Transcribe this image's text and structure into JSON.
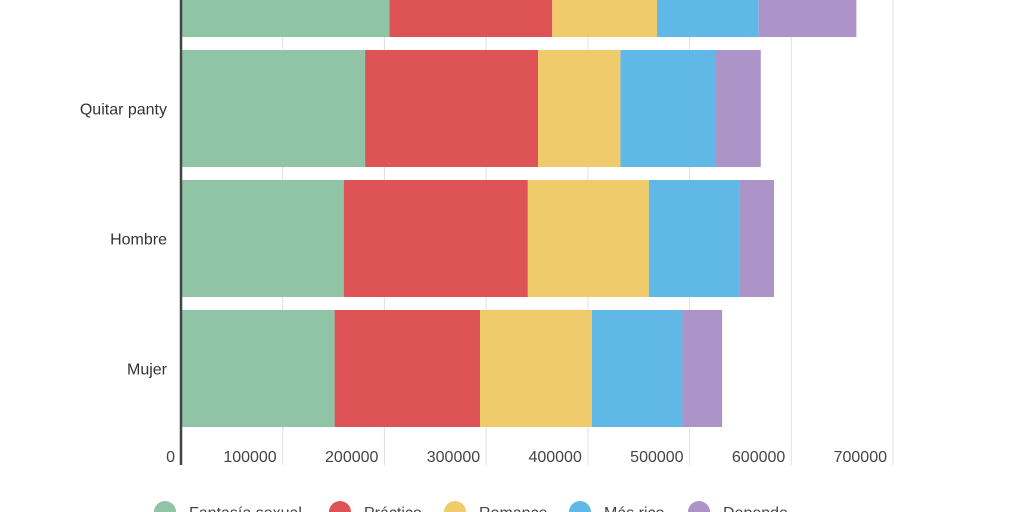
{
  "chart_data": {
    "type": "bar",
    "orientation": "horizontal",
    "stacked": true,
    "categories": [
      "",
      "Quitar panty",
      "Hombre",
      "Mujer"
    ],
    "series": [
      {
        "name": "Fantasía sexual",
        "color": "#8fc4a7",
        "values": [
          205000,
          181000,
          160000,
          151000
        ]
      },
      {
        "name": "Práctico",
        "color": "#de5456",
        "values": [
          160000,
          170000,
          181000,
          143000
        ]
      },
      {
        "name": "Romance",
        "color": "#efcb6b",
        "values": [
          103000,
          81000,
          119000,
          110000
        ]
      },
      {
        "name": "Más rico",
        "color": "#5fb8e5",
        "values": [
          100000,
          94000,
          89000,
          89000
        ]
      },
      {
        "name": "Depende",
        "color": "#ac93c8",
        "values": [
          96000,
          44000,
          34000,
          39000
        ]
      }
    ],
    "xticks": [
      "0",
      "100000",
      "200000",
      "300000",
      "400000",
      "500000",
      "600000",
      "700000"
    ],
    "xlim": [
      0,
      700000
    ],
    "grid": true,
    "legend": "bottom"
  }
}
